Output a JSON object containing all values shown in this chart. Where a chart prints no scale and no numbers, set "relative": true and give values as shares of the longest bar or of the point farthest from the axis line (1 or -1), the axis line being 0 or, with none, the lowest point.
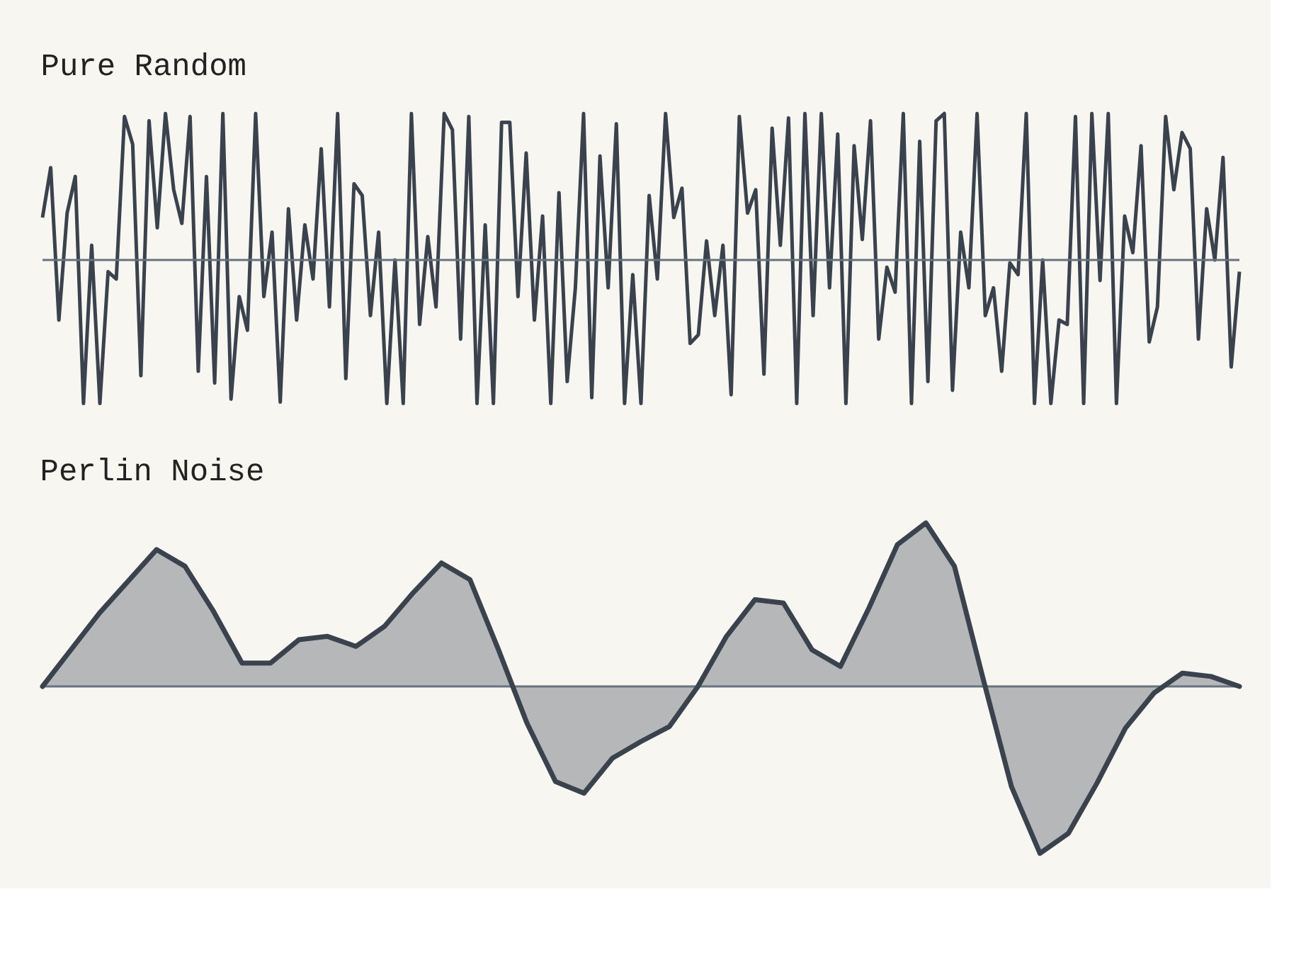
{
  "chart_data": [
    {
      "type": "line",
      "title": "Pure Random",
      "relative": true,
      "categories": [
        null,
        null,
        null,
        null,
        null,
        null,
        null,
        null,
        null,
        null,
        null,
        null,
        null,
        null,
        null,
        null,
        null,
        null,
        null,
        null,
        null,
        null,
        null,
        null,
        null,
        null,
        null,
        null,
        null,
        null,
        null,
        null,
        null,
        null,
        null,
        null,
        null,
        null,
        null,
        null,
        null,
        null,
        null,
        null,
        null,
        null,
        null,
        null,
        null,
        null,
        null,
        null,
        null,
        null,
        null,
        null,
        null,
        null,
        null,
        null,
        null,
        null,
        null,
        null,
        null,
        null,
        null,
        null,
        null,
        null,
        null,
        null,
        null,
        null,
        null,
        null,
        null,
        null,
        null,
        null,
        null,
        null,
        null,
        null,
        null,
        null,
        null,
        null,
        null,
        null,
        null,
        null,
        null,
        null,
        null,
        null,
        null,
        null,
        null,
        null,
        null,
        null,
        null,
        null,
        null,
        null,
        null,
        null,
        null,
        null,
        null,
        null,
        null,
        null,
        null,
        null,
        null,
        null,
        null,
        null,
        null,
        null,
        null,
        null,
        null,
        null,
        null,
        null,
        null,
        null,
        null,
        null,
        null,
        null,
        null,
        null,
        null,
        null,
        null,
        null,
        null,
        null,
        null,
        null,
        null,
        null,
        null
      ],
      "series": [
        {
          "color": "#3a434d",
          "values": [
            0.29,
            0.63,
            -0.41,
            0.32,
            0.57,
            -0.98,
            0.1,
            -0.98,
            -0.08,
            -0.13,
            0.98,
            0.79,
            -0.79,
            0.95,
            0.22,
            1.0,
            0.48,
            0.25,
            0.98,
            -0.76,
            0.57,
            -0.84,
            1.0,
            -0.95,
            -0.25,
            -0.48,
            1.0,
            -0.25,
            0.19,
            -0.97,
            0.35,
            -0.41,
            0.24,
            -0.13,
            0.76,
            -0.32,
            1.0,
            -0.81,
            0.52,
            0.44,
            -0.38,
            0.19,
            -0.98,
            0.0,
            -0.98,
            1.0,
            -0.44,
            0.16,
            -0.32,
            1.0,
            0.89,
            -0.54,
            0.98,
            -0.98,
            0.24,
            -0.98,
            0.94,
            0.94,
            -0.25,
            0.73,
            -0.41,
            0.3,
            -0.98,
            0.46,
            -0.83,
            -0.19,
            1.0,
            -0.94,
            0.71,
            -0.19,
            0.93,
            -0.98,
            -0.1,
            -0.98,
            0.44,
            -0.13,
            1.0,
            0.29,
            0.49,
            -0.57,
            -0.51,
            0.13,
            -0.38,
            0.1,
            -0.92,
            0.98,
            0.32,
            0.48,
            -0.78,
            0.9,
            0.1,
            0.97,
            -0.98,
            1.0,
            -0.38,
            1.0,
            -0.19,
            0.86,
            -0.98,
            0.78,
            0.14,
            0.95,
            -0.54,
            -0.05,
            -0.22,
            1.0,
            -0.98,
            0.81,
            -0.83,
            0.95,
            1.0,
            -0.89,
            0.19,
            -0.19,
            1.0,
            -0.38,
            -0.19,
            -0.76,
            -0.02,
            -0.1,
            1.0,
            -0.98,
            0.0,
            -0.98,
            -0.41,
            -0.44,
            0.98,
            -0.98,
            1.0,
            -0.14,
            1.0,
            -0.98,
            0.3,
            0.05,
            0.78,
            -0.56,
            -0.32,
            0.98,
            0.48,
            0.87,
            0.76,
            -0.54,
            0.35,
            0.0,
            0.7,
            -0.73,
            -0.08
          ]
        }
      ]
    },
    {
      "type": "area",
      "title": "Perlin Noise",
      "relative": true,
      "categories": [
        null,
        null,
        null,
        null,
        null,
        null,
        null,
        null,
        null,
        null,
        null,
        null,
        null,
        null,
        null,
        null,
        null,
        null,
        null,
        null,
        null,
        null,
        null,
        null,
        null,
        null,
        null,
        null,
        null,
        null,
        null,
        null,
        null,
        null,
        null,
        null,
        null,
        null,
        null,
        null,
        null,
        null,
        null
      ],
      "series": [
        {
          "color": "#3a434d",
          "values": [
            0.0,
            0.22,
            0.44,
            0.63,
            0.82,
            0.72,
            0.45,
            0.14,
            0.14,
            0.28,
            0.3,
            0.24,
            0.36,
            0.56,
            0.74,
            0.64,
            0.22,
            -0.22,
            -0.57,
            -0.64,
            -0.43,
            -0.33,
            -0.24,
            0.0,
            0.3,
            0.52,
            0.5,
            0.22,
            0.12,
            0.47,
            0.85,
            0.98,
            0.72,
            0.05,
            -0.6,
            -1.0,
            -0.88,
            -0.58,
            -0.25,
            -0.04,
            0.08,
            0.06,
            0.0
          ]
        }
      ]
    }
  ]
}
